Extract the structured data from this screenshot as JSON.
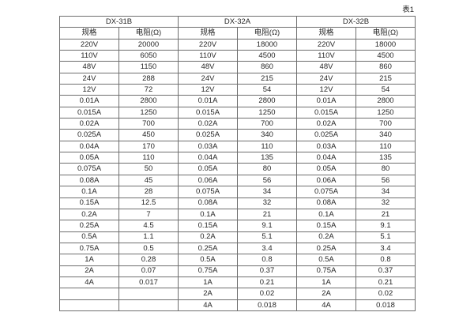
{
  "caption": "表1",
  "colors": {
    "background": "#ffffff",
    "border": "#6e6e6e",
    "text": "#262626"
  },
  "table": {
    "column_headers": [
      "规格",
      "电阻(Ω)"
    ],
    "groups": [
      {
        "title": "DX-31B",
        "rows": [
          [
            "220V",
            "20000"
          ],
          [
            "110V",
            "6050"
          ],
          [
            "48V",
            "1150"
          ],
          [
            "24V",
            "288"
          ],
          [
            "12V",
            "72"
          ],
          [
            "0.01A",
            "2800"
          ],
          [
            "0.015A",
            "1250"
          ],
          [
            "0.02A",
            "700"
          ],
          [
            "0.025A",
            "450"
          ],
          [
            "0.04A",
            "170"
          ],
          [
            "0.05A",
            "110"
          ],
          [
            "0.075A",
            "50"
          ],
          [
            "0.08A",
            "45"
          ],
          [
            "0.1A",
            "28"
          ],
          [
            "0.15A",
            "12.5"
          ],
          [
            "0.2A",
            "7"
          ],
          [
            "0.25A",
            "4.5"
          ],
          [
            "0.5A",
            "1.1"
          ],
          [
            "0.75A",
            "0.5"
          ],
          [
            "1A",
            "0.28"
          ],
          [
            "2A",
            "0.07"
          ],
          [
            "4A",
            "0.017"
          ],
          [
            "",
            ""
          ],
          [
            "",
            ""
          ]
        ]
      },
      {
        "title": "DX-32A",
        "rows": [
          [
            "220V",
            "18000"
          ],
          [
            "110V",
            "4500"
          ],
          [
            "48V",
            "860"
          ],
          [
            "24V",
            "215"
          ],
          [
            "12V",
            "54"
          ],
          [
            "0.01A",
            "2800"
          ],
          [
            "0.015A",
            "1250"
          ],
          [
            "0.02A",
            "700"
          ],
          [
            "0.025A",
            "340"
          ],
          [
            "0.03A",
            "110"
          ],
          [
            "0.04A",
            "135"
          ],
          [
            "0.05A",
            "80"
          ],
          [
            "0.06A",
            "56"
          ],
          [
            "0.075A",
            "34"
          ],
          [
            "0.08A",
            "32"
          ],
          [
            "0.1A",
            "21"
          ],
          [
            "0.15A",
            "9.1"
          ],
          [
            "0.2A",
            "5.1"
          ],
          [
            "0.25A",
            "3.4"
          ],
          [
            "0.5A",
            "0.8"
          ],
          [
            "0.75A",
            "0.37"
          ],
          [
            "1A",
            "0.21"
          ],
          [
            "2A",
            "0.02"
          ],
          [
            "4A",
            "0.018"
          ]
        ]
      },
      {
        "title": "DX-32B",
        "rows": [
          [
            "220V",
            "18000"
          ],
          [
            "110V",
            "4500"
          ],
          [
            "48V",
            "860"
          ],
          [
            "24V",
            "215"
          ],
          [
            "12V",
            "54"
          ],
          [
            "0.01A",
            "2800"
          ],
          [
            "0.015A",
            "1250"
          ],
          [
            "0.02A",
            "700"
          ],
          [
            "0.025A",
            "340"
          ],
          [
            "0.03A",
            "110"
          ],
          [
            "0.04A",
            "135"
          ],
          [
            "0.05A",
            "80"
          ],
          [
            "0.06A",
            "56"
          ],
          [
            "0.075A",
            "34"
          ],
          [
            "0.08A",
            "32"
          ],
          [
            "0.1A",
            "21"
          ],
          [
            "0.15A",
            "9.1"
          ],
          [
            "0.2A",
            "5.1"
          ],
          [
            "0.25A",
            "3.4"
          ],
          [
            "0.5A",
            "0.8"
          ],
          [
            "0.75A",
            "0.37"
          ],
          [
            "1A",
            "0.21"
          ],
          [
            "2A",
            "0.02"
          ],
          [
            "4A",
            "0.018"
          ]
        ]
      }
    ]
  }
}
